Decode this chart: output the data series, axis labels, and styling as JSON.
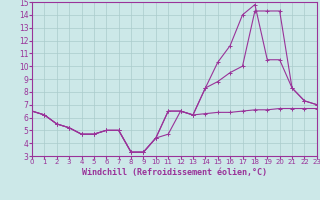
{
  "background_color": "#cce8e8",
  "line_color": "#993399",
  "grid_color": "#aacccc",
  "xlabel": "Windchill (Refroidissement éolien,°C)",
  "xlabel_fontsize": 6.0,
  "ytick_fontsize": 5.5,
  "xtick_fontsize": 5.0,
  "yticks": [
    3,
    4,
    5,
    6,
    7,
    8,
    9,
    10,
    11,
    12,
    13,
    14,
    15
  ],
  "xticks": [
    0,
    1,
    2,
    3,
    4,
    5,
    6,
    7,
    8,
    9,
    10,
    11,
    12,
    13,
    14,
    15,
    16,
    17,
    18,
    19,
    20,
    21,
    22,
    23
  ],
  "ylim": [
    3,
    15
  ],
  "xlim": [
    0,
    23
  ],
  "series1_x": [
    0,
    1,
    2,
    3,
    4,
    5,
    6,
    7,
    8,
    9,
    10,
    11,
    12,
    13,
    14,
    15,
    16,
    17,
    18,
    19,
    20,
    21,
    22,
    23
  ],
  "series1_y": [
    6.5,
    6.2,
    5.5,
    5.2,
    4.7,
    4.7,
    5.0,
    5.0,
    3.3,
    3.3,
    4.4,
    4.7,
    6.5,
    6.2,
    6.3,
    6.4,
    6.4,
    6.5,
    6.6,
    6.6,
    6.7,
    6.7,
    6.7,
    6.7
  ],
  "series2_x": [
    0,
    1,
    2,
    3,
    4,
    5,
    6,
    7,
    8,
    9,
    10,
    11,
    12,
    13,
    14,
    15,
    16,
    17,
    18,
    19,
    20,
    21,
    22,
    23
  ],
  "series2_y": [
    6.5,
    6.2,
    5.5,
    5.2,
    4.7,
    4.7,
    5.0,
    5.0,
    3.3,
    3.3,
    4.4,
    6.5,
    6.5,
    6.2,
    8.3,
    10.3,
    11.6,
    14.0,
    14.8,
    10.5,
    10.5,
    8.3,
    7.3,
    7.0
  ],
  "series3_x": [
    0,
    1,
    2,
    3,
    4,
    5,
    6,
    7,
    8,
    9,
    10,
    11,
    12,
    13,
    14,
    15,
    16,
    17,
    18,
    19,
    20,
    21,
    22,
    23
  ],
  "series3_y": [
    6.5,
    6.2,
    5.5,
    5.2,
    4.7,
    4.7,
    5.0,
    5.0,
    3.3,
    3.3,
    4.4,
    6.5,
    6.5,
    6.2,
    8.3,
    8.8,
    9.5,
    10.0,
    14.3,
    14.3,
    14.3,
    8.3,
    7.3,
    7.0
  ]
}
